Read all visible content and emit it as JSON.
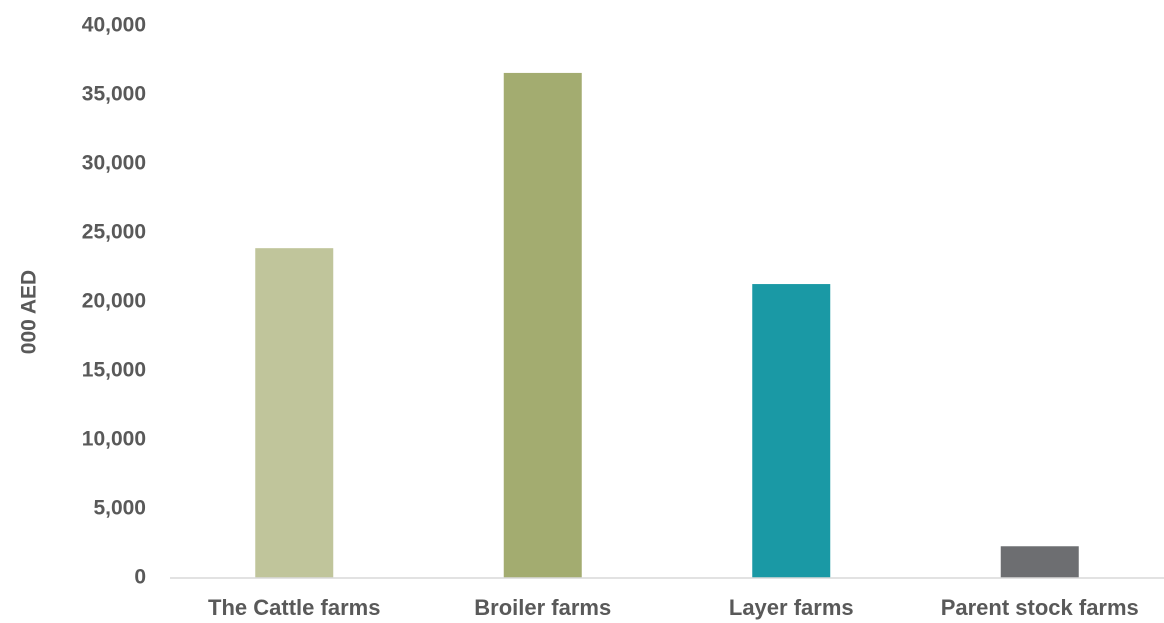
{
  "chart_data": {
    "type": "bar",
    "title": "",
    "xlabel": "",
    "ylabel": "000 AED",
    "ylim": [
      0,
      40000
    ],
    "yticks": [
      0,
      5000,
      10000,
      15000,
      20000,
      25000,
      30000,
      35000,
      40000
    ],
    "ytick_labels": [
      "0",
      "5,000",
      "10,000",
      "15,000",
      "20,000",
      "25,000",
      "30,000",
      "35,000",
      "40,000"
    ],
    "categories": [
      "The Cattle farms",
      "Broiler farms",
      "Layer farms",
      "Parent stock farms"
    ],
    "values": [
      23900,
      36600,
      21300,
      2300
    ],
    "colors": [
      "#c0c59b",
      "#a3ac70",
      "#1a99a5",
      "#6d6e71"
    ],
    "grid": false,
    "legend": "none"
  }
}
